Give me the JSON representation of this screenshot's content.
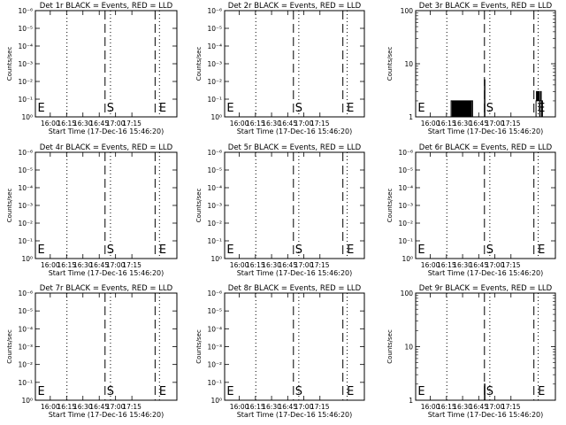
{
  "chart_data": [
    {
      "type": "line",
      "title": "Det 1r BLACK = Events, RED = LLD",
      "xlabel": "Start Time (17-Dec-16 15:46:20)",
      "ylabel": "Counts/sec",
      "yscale": "log",
      "ytick_labels": [
        "10⁰",
        "10⁻¹",
        "10⁻²",
        "10⁻³",
        "10⁻⁴",
        "10⁻⁵",
        "10⁻⁶"
      ],
      "xtick_labels": [
        "16:00",
        "16:15",
        "16:30",
        "16:45",
        "17:00",
        "17:15"
      ],
      "x_range_min": [
        0,
        100
      ],
      "grid": false,
      "dotted_lines_min": [
        29,
        69,
        114
      ],
      "dashed_lines_min": [
        64,
        110
      ],
      "markers": [
        {
          "label": "E",
          "x_min": 2
        },
        {
          "label": "S",
          "x_min": 64
        },
        {
          "label": "E",
          "x_min": 112
        }
      ],
      "series": [
        {
          "color": "#000000",
          "points": []
        },
        {
          "color": "#ff0000",
          "points": []
        }
      ]
    },
    {
      "type": "line",
      "title": "Det 2r BLACK = Events, RED = LLD",
      "xlabel": "Start Time (17-Dec-16 15:46:20)",
      "ylabel": "Counts/sec",
      "yscale": "log",
      "ytick_labels": [
        "10⁰",
        "10⁻¹",
        "10⁻²",
        "10⁻³",
        "10⁻⁴",
        "10⁻⁵",
        "10⁻⁶"
      ],
      "xtick_labels": [
        "16:00",
        "16:15",
        "16:30",
        "16:45",
        "17:00",
        "17:15"
      ],
      "x_range_min": [
        0,
        100
      ],
      "grid": false,
      "dotted_lines_min": [
        29,
        69,
        114
      ],
      "dashed_lines_min": [
        64,
        110
      ],
      "markers": [
        {
          "label": "E",
          "x_min": 2
        },
        {
          "label": "S",
          "x_min": 64
        },
        {
          "label": "E",
          "x_min": 112
        }
      ],
      "series": [
        {
          "color": "#000000",
          "points": []
        },
        {
          "color": "#ff0000",
          "points": []
        }
      ]
    },
    {
      "type": "line",
      "title": "Det 3r BLACK = Events, RED = LLD",
      "xlabel": "Start Time (17-Dec-16 15:46:20)",
      "ylabel": "Counts/sec",
      "yscale": "log",
      "ytick_labels": [
        "1",
        "10",
        "100"
      ],
      "xtick_labels": [
        "16:00",
        "16:15",
        "16:30",
        "16:45",
        "17:00",
        "17:15"
      ],
      "x_range_min": [
        0,
        100
      ],
      "grid": false,
      "dotted_lines_min": [
        29,
        69,
        114
      ],
      "dashed_lines_min": [
        64,
        110
      ],
      "markers": [
        {
          "label": "E",
          "x_min": 2
        },
        {
          "label": "S",
          "x_min": 64
        },
        {
          "label": "E",
          "x_min": 112
        }
      ],
      "series": [
        {
          "color": "#000000",
          "points": [
            [
              0,
              1
            ],
            [
              33,
              1
            ],
            [
              33,
              2
            ],
            [
              34,
              2
            ],
            [
              34,
              1
            ],
            [
              34.5,
              1
            ],
            [
              34.5,
              2
            ],
            [
              35,
              2
            ],
            [
              35,
              1
            ],
            [
              35.3,
              1
            ],
            [
              35.3,
              2
            ],
            [
              35.8,
              2
            ],
            [
              35.8,
              1
            ],
            [
              36,
              1
            ],
            [
              36,
              2
            ],
            [
              36.5,
              2
            ],
            [
              36.5,
              1
            ],
            [
              36.8,
              1
            ],
            [
              36.8,
              2
            ],
            [
              37.2,
              2
            ],
            [
              37.2,
              1
            ],
            [
              37.5,
              1
            ],
            [
              37.5,
              2
            ],
            [
              37.9,
              2
            ],
            [
              37.9,
              1
            ],
            [
              38.2,
              1
            ],
            [
              38.2,
              2
            ],
            [
              38.6,
              2
            ],
            [
              38.6,
              1
            ],
            [
              39,
              1
            ],
            [
              39,
              2
            ],
            [
              39.5,
              2
            ],
            [
              39.5,
              1
            ],
            [
              39.8,
              1
            ],
            [
              39.8,
              2
            ],
            [
              40.2,
              2
            ],
            [
              40.2,
              1
            ],
            [
              40.5,
              1
            ],
            [
              40.5,
              2
            ],
            [
              41,
              2
            ],
            [
              41,
              1
            ],
            [
              41.3,
              1
            ],
            [
              41.3,
              2
            ],
            [
              41.7,
              2
            ],
            [
              41.7,
              1
            ],
            [
              42,
              1
            ],
            [
              42,
              2
            ],
            [
              42.5,
              2
            ],
            [
              42.5,
              1
            ],
            [
              42.8,
              1
            ],
            [
              42.8,
              2
            ],
            [
              43.3,
              2
            ],
            [
              43.3,
              1
            ],
            [
              43.6,
              1
            ],
            [
              43.6,
              2
            ],
            [
              44,
              2
            ],
            [
              44,
              1
            ],
            [
              44.3,
              1
            ],
            [
              44.3,
              2
            ],
            [
              44.8,
              2
            ],
            [
              44.8,
              1
            ],
            [
              45.2,
              1
            ],
            [
              45.2,
              2
            ],
            [
              45.6,
              2
            ],
            [
              45.6,
              1
            ],
            [
              46,
              1
            ],
            [
              46,
              2
            ],
            [
              46.4,
              2
            ],
            [
              46.4,
              1
            ],
            [
              46.8,
              1
            ],
            [
              46.8,
              2
            ],
            [
              47.3,
              2
            ],
            [
              47.3,
              1
            ],
            [
              47.6,
              1
            ],
            [
              47.6,
              2
            ],
            [
              48.1,
              2
            ],
            [
              48.1,
              1
            ],
            [
              48.5,
              1
            ],
            [
              48.5,
              2
            ],
            [
              49,
              2
            ],
            [
              49,
              1
            ],
            [
              49.3,
              1
            ],
            [
              49.3,
              2
            ],
            [
              49.8,
              2
            ],
            [
              49.8,
              1
            ],
            [
              50.2,
              1
            ],
            [
              50.2,
              2
            ],
            [
              50.6,
              2
            ],
            [
              50.6,
              1
            ],
            [
              51,
              1
            ],
            [
              51,
              2
            ],
            [
              51.5,
              2
            ],
            [
              51.5,
              1
            ],
            [
              52,
              1
            ],
            [
              52,
              2
            ],
            [
              53,
              2
            ],
            [
              53,
              1
            ],
            [
              64,
              1
            ],
            [
              64,
              5
            ],
            [
              64.4,
              5
            ],
            [
              64.4,
              1
            ],
            [
              112,
              1
            ],
            [
              112,
              2
            ],
            [
              112.4,
              2
            ],
            [
              112.4,
              3
            ],
            [
              113,
              3
            ],
            [
              113,
              2
            ],
            [
              113.5,
              2
            ],
            [
              113.5,
              3
            ],
            [
              114,
              3
            ],
            [
              114,
              2
            ],
            [
              114.5,
              2
            ],
            [
              114.5,
              3
            ],
            [
              115,
              3
            ],
            [
              115,
              2
            ],
            [
              115.4,
              2
            ],
            [
              115.4,
              1
            ],
            [
              115.8,
              1
            ],
            [
              115.8,
              2
            ],
            [
              116.2,
              2
            ],
            [
              116.2,
              3
            ],
            [
              116.8,
              3
            ],
            [
              116.8,
              2
            ],
            [
              117.2,
              2
            ],
            [
              117.2,
              1
            ],
            [
              117.6,
              1
            ],
            [
              117.6,
              2
            ],
            [
              118,
              2
            ],
            [
              118,
              1
            ],
            [
              130,
              1
            ]
          ]
        },
        {
          "color": "#ff0000",
          "points": []
        }
      ]
    },
    {
      "type": "line",
      "title": "Det 4r BLACK = Events, RED = LLD",
      "xlabel": "Start Time (17-Dec-16 15:46:20)",
      "ylabel": "Counts/sec",
      "yscale": "log",
      "ytick_labels": [
        "10⁰",
        "10⁻¹",
        "10⁻²",
        "10⁻³",
        "10⁻⁴",
        "10⁻⁵",
        "10⁻⁶"
      ],
      "xtick_labels": [
        "16:00",
        "16:15",
        "16:30",
        "16:45",
        "17:00",
        "17:15"
      ],
      "x_range_min": [
        0,
        100
      ],
      "grid": false,
      "dotted_lines_min": [
        29,
        69,
        114
      ],
      "dashed_lines_min": [
        64,
        110
      ],
      "markers": [
        {
          "label": "E",
          "x_min": 2
        },
        {
          "label": "S",
          "x_min": 64
        },
        {
          "label": "E",
          "x_min": 112
        }
      ],
      "series": [
        {
          "color": "#000000",
          "points": []
        },
        {
          "color": "#ff0000",
          "points": []
        }
      ]
    },
    {
      "type": "line",
      "title": "Det 5r BLACK = Events, RED = LLD",
      "xlabel": "Start Time (17-Dec-16 15:46:20)",
      "ylabel": "Counts/sec",
      "yscale": "log",
      "ytick_labels": [
        "10⁰",
        "10⁻¹",
        "10⁻²",
        "10⁻³",
        "10⁻⁴",
        "10⁻⁵",
        "10⁻⁶"
      ],
      "xtick_labels": [
        "16:00",
        "16:15",
        "16:30",
        "16:45",
        "17:00",
        "17:15"
      ],
      "x_range_min": [
        0,
        100
      ],
      "grid": false,
      "dotted_lines_min": [
        29,
        69,
        114
      ],
      "dashed_lines_min": [
        64,
        110
      ],
      "markers": [
        {
          "label": "E",
          "x_min": 2
        },
        {
          "label": "S",
          "x_min": 64
        },
        {
          "label": "E",
          "x_min": 112
        }
      ],
      "series": [
        {
          "color": "#000000",
          "points": []
        },
        {
          "color": "#ff0000",
          "points": []
        }
      ]
    },
    {
      "type": "line",
      "title": "Det 6r BLACK = Events, RED = LLD",
      "xlabel": "Start Time (17-Dec-16 15:46:20)",
      "ylabel": "Counts/sec",
      "yscale": "log",
      "ytick_labels": [
        "10⁰",
        "10⁻¹",
        "10⁻²",
        "10⁻³",
        "10⁻⁴",
        "10⁻⁵",
        "10⁻⁶"
      ],
      "xtick_labels": [
        "16:00",
        "16:15",
        "16:30",
        "16:45",
        "17:00",
        "17:15"
      ],
      "x_range_min": [
        0,
        100
      ],
      "grid": false,
      "dotted_lines_min": [
        29,
        69,
        114
      ],
      "dashed_lines_min": [
        64,
        110
      ],
      "markers": [
        {
          "label": "E",
          "x_min": 2
        },
        {
          "label": "S",
          "x_min": 64
        },
        {
          "label": "E",
          "x_min": 112
        }
      ],
      "series": [
        {
          "color": "#000000",
          "points": []
        },
        {
          "color": "#ff0000",
          "points": []
        }
      ]
    },
    {
      "type": "line",
      "title": "Det 7r BLACK = Events, RED = LLD",
      "xlabel": "Start Time (17-Dec-16 15:46:20)",
      "ylabel": "Counts/sec",
      "yscale": "log",
      "ytick_labels": [
        "10⁰",
        "10⁻¹",
        "10⁻²",
        "10⁻³",
        "10⁻⁴",
        "10⁻⁵",
        "10⁻⁶"
      ],
      "xtick_labels": [
        "16:00",
        "16:15",
        "16:30",
        "16:45",
        "17:00",
        "17:15"
      ],
      "x_range_min": [
        0,
        100
      ],
      "grid": false,
      "dotted_lines_min": [
        29,
        69,
        114
      ],
      "dashed_lines_min": [
        64,
        110
      ],
      "markers": [
        {
          "label": "E",
          "x_min": 2
        },
        {
          "label": "S",
          "x_min": 64
        },
        {
          "label": "E",
          "x_min": 112
        }
      ],
      "series": [
        {
          "color": "#000000",
          "points": []
        },
        {
          "color": "#ff0000",
          "points": []
        }
      ]
    },
    {
      "type": "line",
      "title": "Det 8r BLACK = Events, RED = LLD",
      "xlabel": "Start Time (17-Dec-16 15:46:20)",
      "ylabel": "Counts/sec",
      "yscale": "log",
      "ytick_labels": [
        "10⁰",
        "10⁻¹",
        "10⁻²",
        "10⁻³",
        "10⁻⁴",
        "10⁻⁵",
        "10⁻⁶"
      ],
      "xtick_labels": [
        "16:00",
        "16:15",
        "16:30",
        "16:45",
        "17:00",
        "17:15"
      ],
      "x_range_min": [
        0,
        100
      ],
      "grid": false,
      "dotted_lines_min": [
        29,
        69,
        114
      ],
      "dashed_lines_min": [
        64,
        110
      ],
      "markers": [
        {
          "label": "E",
          "x_min": 2
        },
        {
          "label": "S",
          "x_min": 64
        },
        {
          "label": "E",
          "x_min": 112
        }
      ],
      "series": [
        {
          "color": "#000000",
          "points": []
        },
        {
          "color": "#ff0000",
          "points": []
        }
      ]
    },
    {
      "type": "line",
      "title": "Det 9r BLACK = Events, RED = LLD",
      "xlabel": "Start Time (17-Dec-16 15:46:20)",
      "ylabel": "Counts/sec",
      "yscale": "log",
      "ytick_labels": [
        "1",
        "10",
        "100"
      ],
      "xtick_labels": [
        "16:00",
        "16:15",
        "16:30",
        "16:45",
        "17:00",
        "17:15"
      ],
      "x_range_min": [
        0,
        100
      ],
      "grid": false,
      "dotted_lines_min": [
        29,
        69,
        114
      ],
      "dashed_lines_min": [
        64,
        110
      ],
      "markers": [
        {
          "label": "E",
          "x_min": 2
        },
        {
          "label": "S",
          "x_min": 64
        },
        {
          "label": "E",
          "x_min": 112
        }
      ],
      "series": [
        {
          "color": "#000000",
          "points": [
            [
              0,
              1
            ],
            [
              64,
              1
            ],
            [
              64,
              2
            ],
            [
              64.4,
              2
            ],
            [
              64.4,
              1
            ],
            [
              130,
              1
            ]
          ]
        },
        {
          "color": "#ff0000",
          "points": []
        }
      ]
    }
  ]
}
